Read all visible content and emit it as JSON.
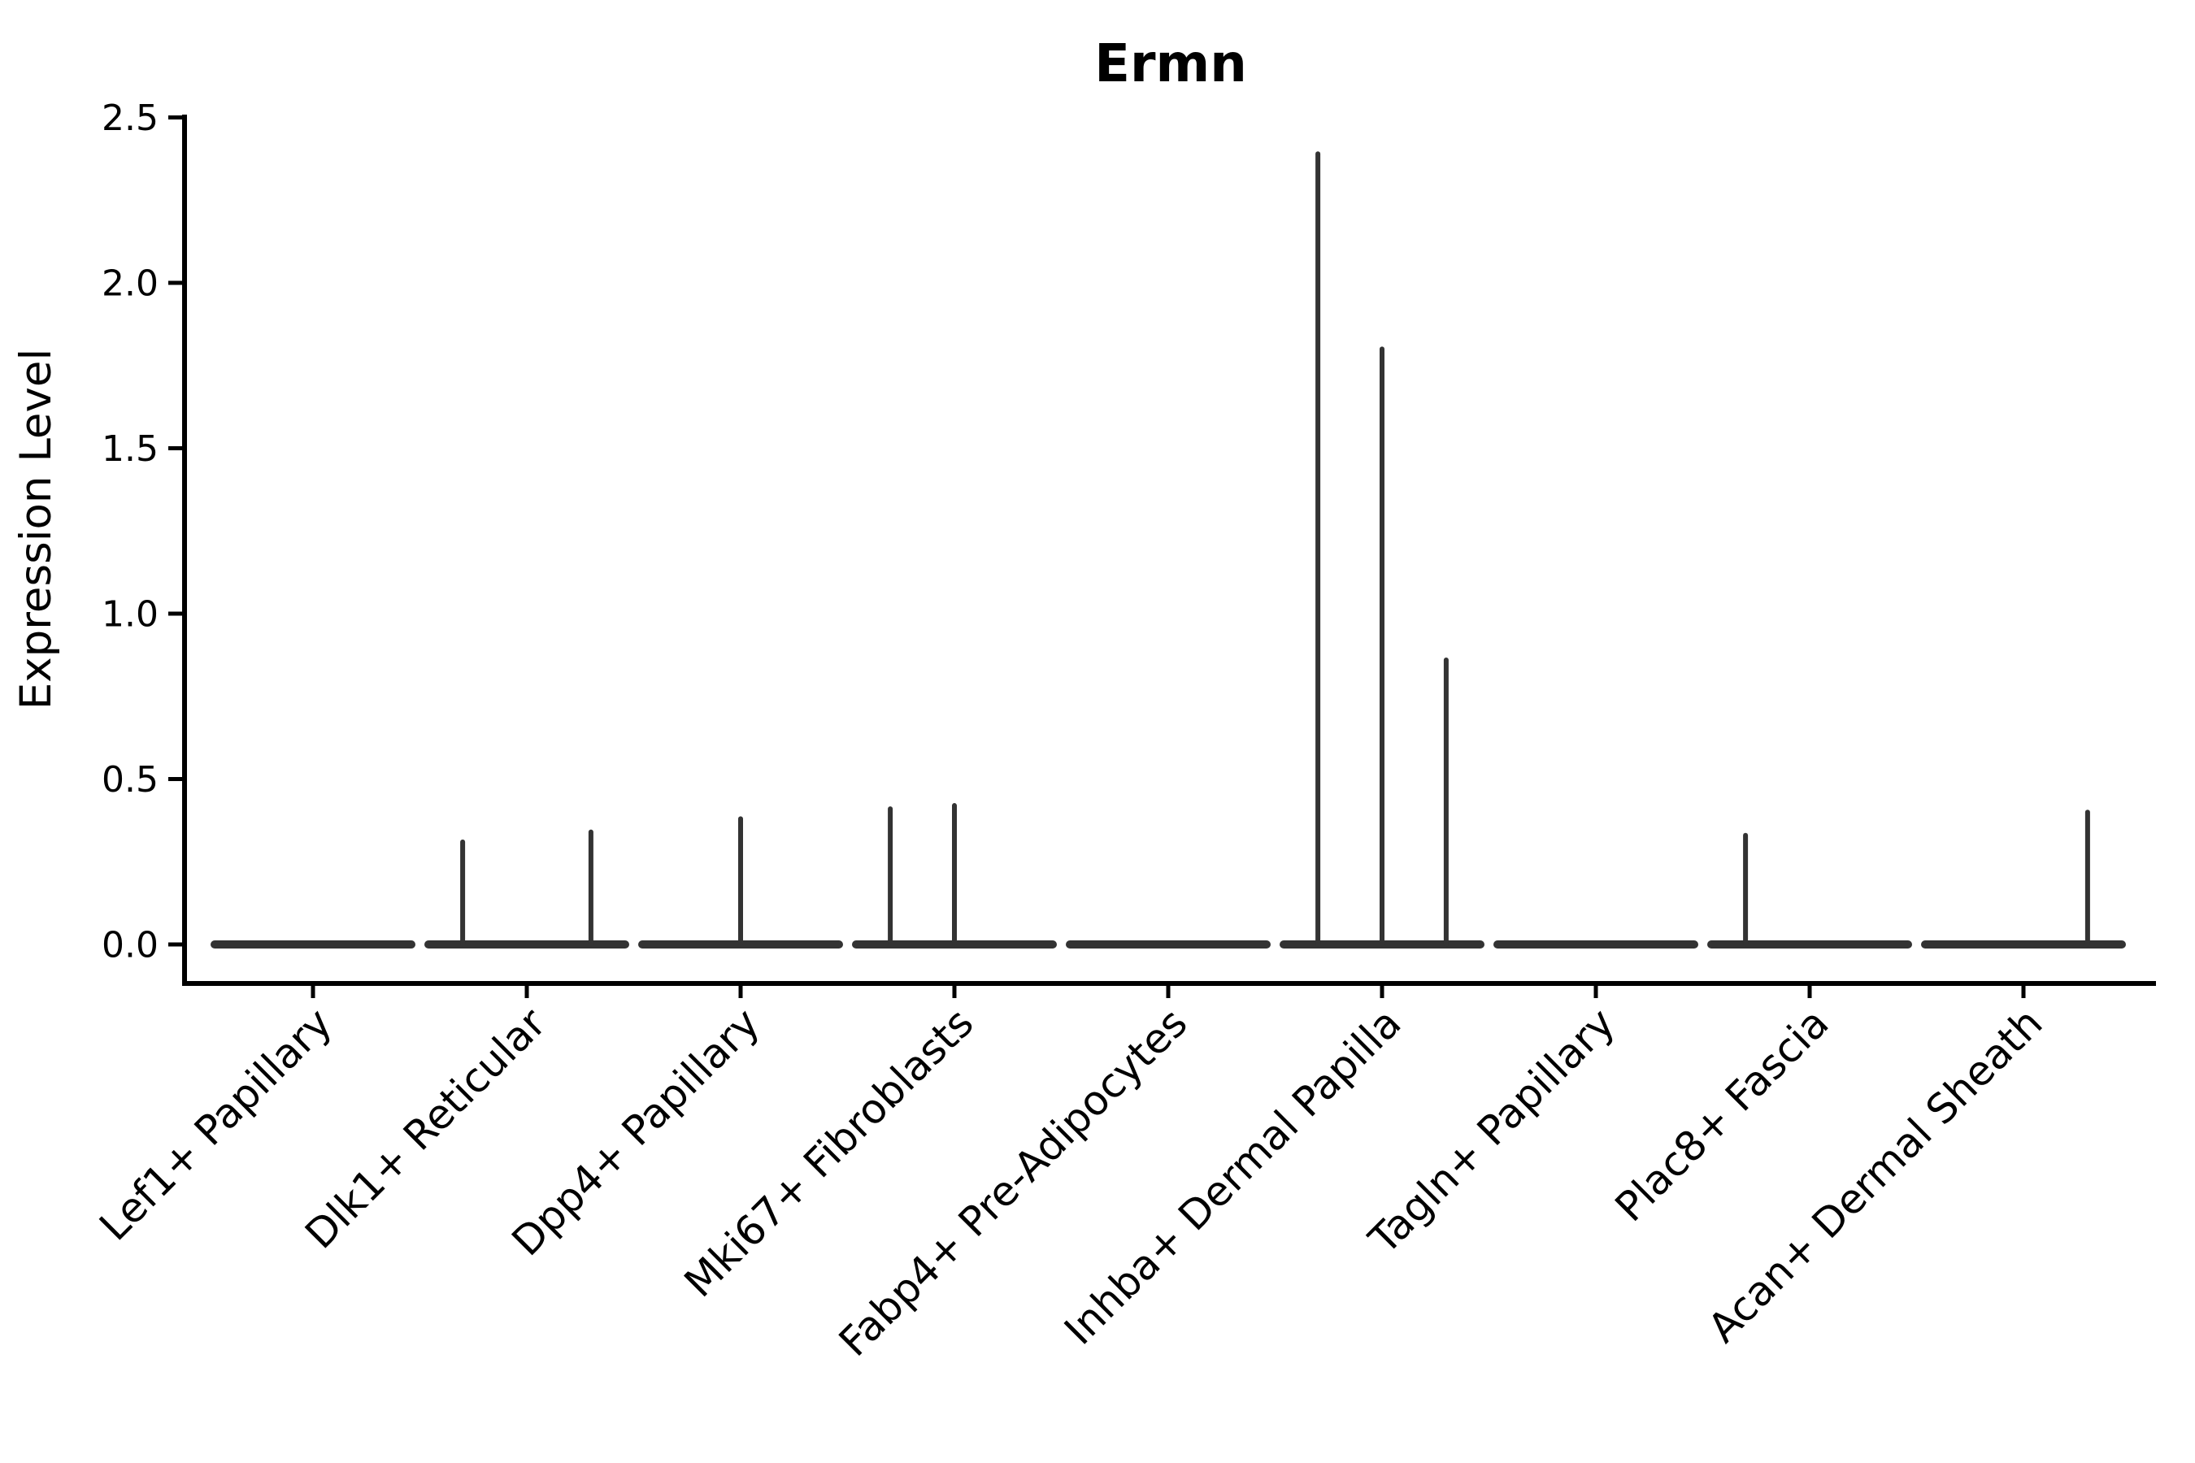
{
  "figure": {
    "title": "Ermn",
    "y_axis_label": "Expression Level"
  },
  "chart_data": {
    "type": "violin",
    "title": "Ermn",
    "xlabel": "",
    "ylabel": "Expression Level",
    "ylim": [
      -0.12,
      2.5
    ],
    "yticks": [
      "0.0",
      "0.5",
      "1.0",
      "1.5",
      "2.0",
      "2.5"
    ],
    "ytick_values": [
      0.0,
      0.5,
      1.0,
      1.5,
      2.0,
      2.5
    ],
    "grid": false,
    "legend": "none",
    "x_tick_rotation_deg": 45,
    "categories": [
      "Lef1+ Papillary",
      "Dlk1+ Reticular",
      "Dpp4+ Papillary",
      "Mki67+ Fibroblasts",
      "Fabp4+ Pre-Adipocytes",
      "Inhba+ Dermal Papilla",
      "Tagln+ Papillary",
      "Plac8+ Fascia",
      "Acan+ Dermal Sheath"
    ],
    "violins": [
      {
        "category": "Lef1+ Papillary",
        "baseline_value": 0.0,
        "spikes": []
      },
      {
        "category": "Dlk1+ Reticular",
        "baseline_value": 0.0,
        "spikes": [
          {
            "offset": -0.3,
            "value": 0.31
          },
          {
            "offset": 0.3,
            "value": 0.34
          }
        ]
      },
      {
        "category": "Dpp4+ Papillary",
        "baseline_value": 0.0,
        "spikes": [
          {
            "offset": 0.0,
            "value": 0.38
          }
        ]
      },
      {
        "category": "Mki67+ Fibroblasts",
        "baseline_value": 0.0,
        "spikes": [
          {
            "offset": -0.3,
            "value": 0.41
          },
          {
            "offset": 0.0,
            "value": 0.42
          }
        ]
      },
      {
        "category": "Fabp4+ Pre-Adipocytes",
        "baseline_value": 0.0,
        "spikes": []
      },
      {
        "category": "Inhba+ Dermal Papilla",
        "baseline_value": 0.0,
        "spikes": [
          {
            "offset": -0.3,
            "value": 2.39
          },
          {
            "offset": 0.0,
            "value": 1.8
          },
          {
            "offset": 0.3,
            "value": 0.86
          }
        ]
      },
      {
        "category": "Tagln+ Papillary",
        "baseline_value": 0.0,
        "spikes": []
      },
      {
        "category": "Plac8+ Fascia",
        "baseline_value": 0.0,
        "spikes": [
          {
            "offset": -0.3,
            "value": 0.33
          }
        ]
      },
      {
        "category": "Acan+ Dermal Sheath",
        "baseline_value": 0.0,
        "spikes": [
          {
            "offset": 0.3,
            "value": 0.4
          }
        ]
      }
    ],
    "colors": {
      "violin_line": "#333333",
      "axis": "#000000",
      "text": "#000000",
      "background": "#ffffff"
    }
  }
}
